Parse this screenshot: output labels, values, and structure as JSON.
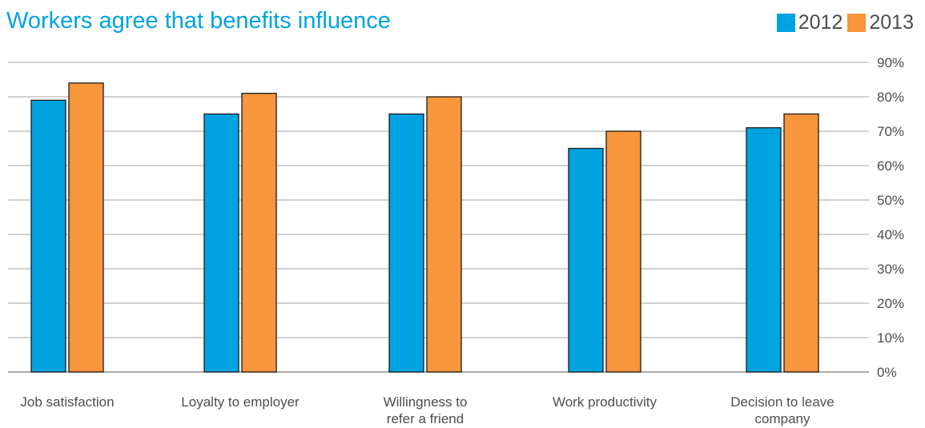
{
  "chart_data": {
    "type": "bar",
    "title": "Workers agree that benefits influence",
    "categories": [
      [
        "Job satisfaction"
      ],
      [
        "Loyalty to employer"
      ],
      [
        "Willingness to",
        "refer a friend"
      ],
      [
        "Work productivity"
      ],
      [
        "Decision to leave",
        "company"
      ]
    ],
    "series": [
      {
        "name": "2012",
        "color": "#00a3e0",
        "values": [
          79,
          75,
          75,
          65,
          71
        ]
      },
      {
        "name": "2013",
        "color": "#f7963b",
        "values": [
          84,
          81,
          80,
          70,
          75
        ]
      }
    ],
    "y_ticks": [
      "0%",
      "10%",
      "20%",
      "30%",
      "40%",
      "50%",
      "60%",
      "70%",
      "80%",
      "90%"
    ],
    "ylim": [
      0,
      90
    ],
    "grid": true,
    "legend_position": "top-right",
    "y_axis_position": "right"
  }
}
